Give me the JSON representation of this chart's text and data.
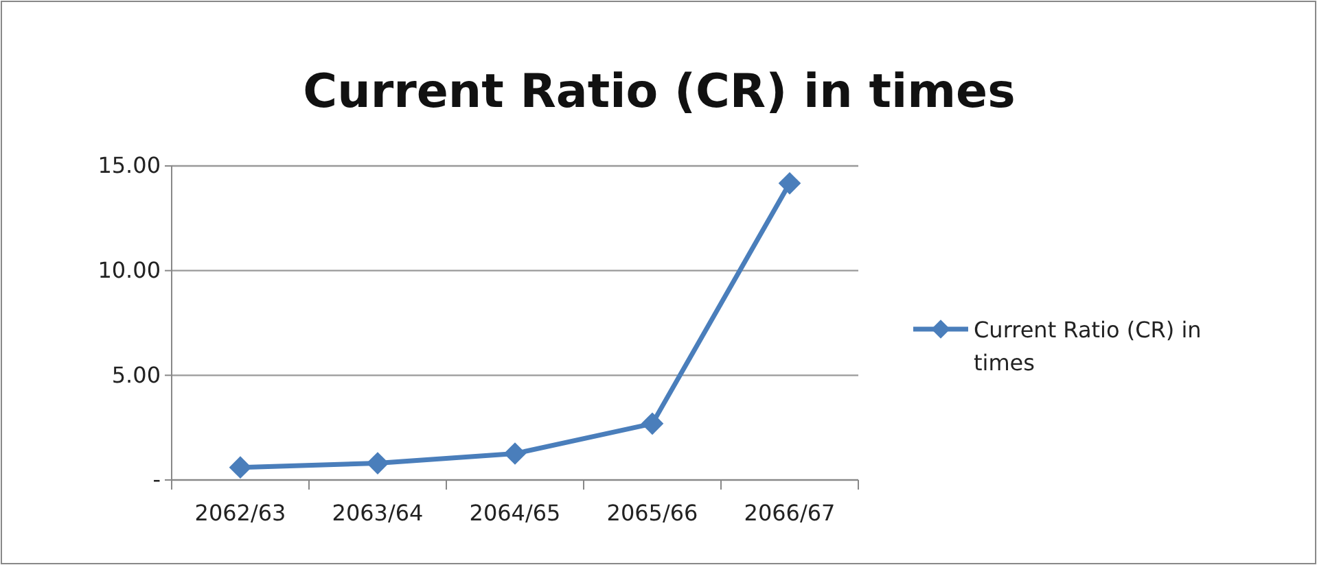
{
  "chart_data": {
    "type": "line",
    "title": "Current Ratio (CR) in times",
    "categories": [
      "2062/63",
      "2063/64",
      "2064/65",
      "2065/66",
      "2066/67"
    ],
    "series": [
      {
        "name": "Current Ratio (CR) in times",
        "color": "#4a7ebb",
        "values": [
          0.6,
          0.8,
          1.26,
          2.69,
          14.17
        ]
      }
    ],
    "ylim": [
      0,
      15
    ],
    "yticks": [
      {
        "value": 0,
        "label": "-"
      },
      {
        "value": 5,
        "label": "5.00"
      },
      {
        "value": 10,
        "label": "10.00"
      },
      {
        "value": 15,
        "label": "15.00"
      }
    ],
    "grid": "y",
    "legend": "right",
    "marker": "diamond",
    "line_style": "solid"
  }
}
